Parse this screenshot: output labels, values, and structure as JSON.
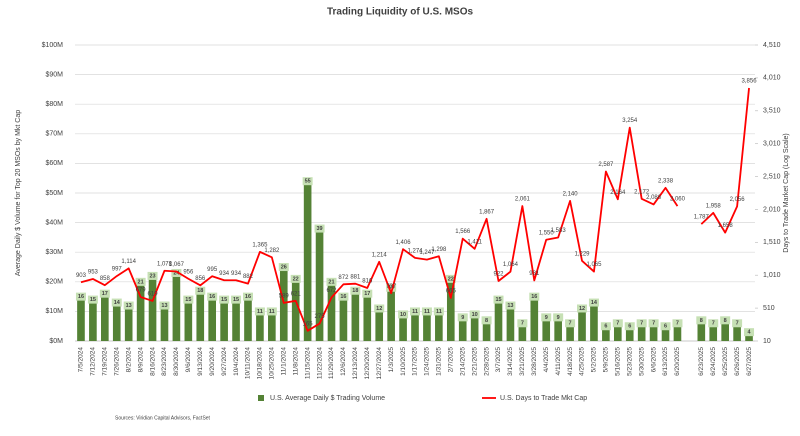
{
  "chart_data": {
    "type": "bar",
    "title": "Trading Liquidity of U.S. MSOs",
    "y_label": "Average Daily $ Volume for Top 20 MSOs by Mkt Cap",
    "y2_label": "Days to Trade Market Cap (Log Scale)",
    "source": "Sources: Viridian Capital Advisors, FactSet",
    "categories": [
      "7/5/2024",
      "7/12/2024",
      "7/19/2024",
      "7/26/2024",
      "8/2/2024",
      "8/9/2024",
      "8/16/2024",
      "8/23/2024",
      "8/30/2024",
      "9/6/2024",
      "9/13/2024",
      "9/20/2024",
      "9/27/2024",
      "10/4/2024",
      "10/11/2024",
      "10/18/2024",
      "10/25/2024",
      "11/1/2024",
      "11/8/2024",
      "11/15/2024",
      "11/22/2024",
      "11/29/2024",
      "12/6/2024",
      "12/13/2024",
      "12/20/2024",
      "12/27/2024",
      "1/3/2025",
      "1/10/2025",
      "1/17/2025",
      "1/24/2025",
      "1/31/2025",
      "2/7/2025",
      "2/14/2025",
      "2/21/2025",
      "2/28/2025",
      "3/7/2025",
      "3/14/2025",
      "3/21/2025",
      "3/28/2025",
      "4/4/2025",
      "4/11/2025",
      "4/18/2025",
      "4/25/2025",
      "5/2/2025",
      "5/9/2025",
      "5/16/2025",
      "5/23/2025",
      "5/30/2025",
      "6/6/2025",
      "6/13/2025",
      "6/20/2025",
      null,
      "6/23/2025",
      "6/24/2025",
      "6/25/2025",
      "6/26/2025",
      "6/27/2025"
    ],
    "series": [
      {
        "name": "U.S. Average Daily $ Trading Volume",
        "type": "bar",
        "color": "#548235",
        "label_color": "#c6e0b4",
        "values": [
          16,
          15,
          17,
          14,
          13,
          21,
          23,
          13,
          24,
          15,
          18,
          16,
          15,
          15,
          16,
          11,
          11,
          26,
          22,
          55,
          39,
          21,
          16,
          18,
          17,
          12,
          19,
          10,
          11,
          11,
          11,
          22,
          9,
          10,
          8,
          15,
          13,
          7,
          16,
          9,
          9,
          7,
          12,
          14,
          6,
          7,
          6,
          7,
          7,
          6,
          7,
          null,
          8,
          7,
          8,
          7,
          4
        ]
      },
      {
        "name": "U.S. Days to Trade Mkt Cap",
        "type": "line",
        "axis": "y2",
        "color": "#ff0000",
        "values": [
          903,
          953,
          858,
          997,
          1114,
          679,
          619,
          1078,
          1067,
          956,
          856,
          995,
          934,
          934,
          882,
          1365,
          1282,
          589,
          621,
          165,
          275,
          672,
          872,
          881,
          816,
          1214,
          737,
          1406,
          1274,
          1247,
          1298,
          665,
          1566,
          1411,
          1867,
          922,
          1064,
          2061,
          931,
          1550,
          1583,
          2140,
          1229,
          1065,
          2587,
          2164,
          3254,
          2172,
          2086,
          2338,
          2060,
          null,
          1787,
          1958,
          1658,
          2056,
          3856
        ],
        "value_labels": [
          "903",
          "953",
          "858",
          "997",
          "1,114",
          "679",
          "619",
          "1,078",
          "1,067",
          "956",
          "856",
          "995",
          "934",
          "934",
          "882",
          "1,365",
          "1,282",
          "589",
          "621",
          "165",
          "275",
          "672",
          "872",
          "881",
          "816",
          "1,214",
          "737",
          "1,406",
          "1,274",
          "1,247",
          "1,298",
          "665",
          "1,566",
          "1,411",
          "1,867",
          "922",
          "1,064",
          "2,061",
          "931",
          "1,550",
          "1,583",
          "2,140",
          "1,229",
          "1,065",
          "2,587",
          "2,164",
          "3,254",
          "2,172",
          "2,086",
          "2,338",
          "2,060",
          null,
          "1,787",
          "1,958",
          "1,658",
          "2,056",
          "3,856"
        ]
      }
    ],
    "ylim": [
      0,
      100
    ],
    "yticks": [
      {
        "value": 0,
        "label": "$0M"
      },
      {
        "value": 10,
        "label": "$10M"
      },
      {
        "value": 20,
        "label": "$20M"
      },
      {
        "value": 30,
        "label": "$30M"
      },
      {
        "value": 40,
        "label": "$40M"
      },
      {
        "value": 50,
        "label": "$50M"
      },
      {
        "value": 60,
        "label": "$60M"
      },
      {
        "value": 70,
        "label": "$70M"
      },
      {
        "value": 80,
        "label": "$80M"
      },
      {
        "value": 90,
        "label": "$90M"
      },
      {
        "value": 100,
        "label": "$100M"
      }
    ],
    "y2lim": [
      10,
      4510
    ],
    "y2ticks": [
      10,
      510,
      {
        "value": 1010,
        "label": "1,010"
      },
      {
        "value": 1510,
        "label": "1,510"
      },
      {
        "value": 2010,
        "label": "2,010"
      },
      {
        "value": 2510,
        "label": "2,510"
      },
      {
        "value": 3010,
        "label": "3,010"
      },
      {
        "value": 3510,
        "label": "3,510"
      },
      {
        "value": 4010,
        "label": "4,010"
      },
      {
        "value": 4510,
        "label": "4,510"
      }
    ],
    "grid": true,
    "legend": "bottom"
  }
}
